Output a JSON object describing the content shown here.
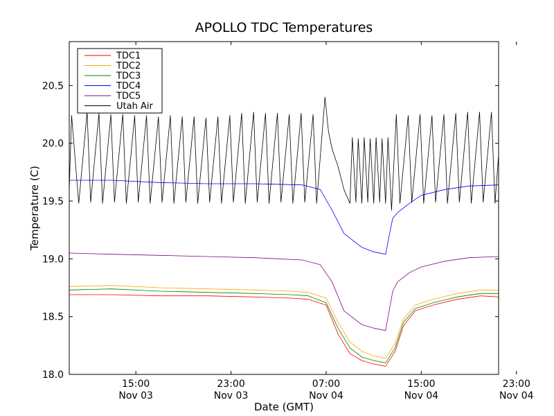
{
  "chart_data": {
    "type": "line",
    "title": "APOLLO TDC Temperatures",
    "xlabel": "Date (GMT)",
    "ylabel": "Temperature (C)",
    "xlim": [
      9.4,
      45.5
    ],
    "ylim": [
      18.0,
      20.88
    ],
    "yticks": [
      "18.0",
      "18.5",
      "19.0",
      "19.5",
      "20.0",
      "20.5"
    ],
    "ytick_values": [
      18.0,
      18.5,
      19.0,
      19.5,
      20.0,
      20.5
    ],
    "xticks": [
      {
        "hours": 15,
        "line1": "15:00",
        "line2": "Nov 03"
      },
      {
        "hours": 23,
        "line1": "23:00",
        "line2": "Nov 03"
      },
      {
        "hours": 31,
        "line1": "07:00",
        "line2": "Nov 04"
      },
      {
        "hours": 39,
        "line1": "15:00",
        "line2": "Nov 04"
      },
      {
        "hours": 47,
        "line1": "23:00",
        "line2": "Nov 04"
      }
    ],
    "legend_position": "top-left",
    "series": [
      {
        "name": "TDC1",
        "color": "#ff0000",
        "x": [
          9.4,
          13,
          17,
          21,
          25,
          28,
          29.5,
          31,
          32,
          33,
          34,
          35,
          36,
          36.8,
          37.5,
          38.5,
          40,
          42,
          44,
          45.5
        ],
        "y": [
          18.69,
          18.69,
          18.68,
          18.68,
          18.67,
          18.66,
          18.65,
          18.6,
          18.35,
          18.18,
          18.12,
          18.09,
          18.07,
          18.2,
          18.42,
          18.55,
          18.6,
          18.65,
          18.68,
          18.67
        ]
      },
      {
        "name": "TDC2",
        "color": "#ffa500",
        "x": [
          9.4,
          13,
          17,
          21,
          25,
          28,
          29.5,
          31,
          32,
          33,
          34,
          35,
          36,
          36.8,
          37.5,
          38.5,
          40,
          42,
          44,
          45.5
        ],
        "y": [
          18.76,
          18.77,
          18.75,
          18.74,
          18.73,
          18.72,
          18.71,
          18.66,
          18.45,
          18.28,
          18.2,
          18.16,
          18.14,
          18.27,
          18.48,
          18.6,
          18.65,
          18.7,
          18.73,
          18.73
        ]
      },
      {
        "name": "TDC3",
        "color": "#008000",
        "x": [
          9.4,
          13,
          17,
          21,
          25,
          28,
          29.5,
          31,
          32,
          33,
          34,
          35,
          36,
          36.8,
          37.5,
          38.5,
          40,
          42,
          44,
          45.5
        ],
        "y": [
          18.73,
          18.74,
          18.72,
          18.71,
          18.7,
          18.69,
          18.68,
          18.62,
          18.4,
          18.23,
          18.15,
          18.12,
          18.1,
          18.23,
          18.45,
          18.57,
          18.62,
          18.67,
          18.7,
          18.7
        ]
      },
      {
        "name": "TDC4",
        "color": "#0000ff",
        "x": [
          9.4,
          13,
          17,
          21,
          25,
          29,
          30.5,
          31.5,
          32.5,
          34,
          35,
          36,
          36.3,
          36.6,
          37,
          38,
          39,
          41,
          43,
          45.5
        ],
        "y": [
          19.68,
          19.68,
          19.66,
          19.65,
          19.65,
          19.64,
          19.6,
          19.42,
          19.22,
          19.1,
          19.06,
          19.04,
          19.2,
          19.35,
          19.4,
          19.48,
          19.55,
          19.6,
          19.63,
          19.64
        ]
      },
      {
        "name": "TDC5",
        "color": "#800080",
        "x": [
          9.4,
          13,
          17,
          21,
          25,
          29,
          30.5,
          31.5,
          32.5,
          34,
          35,
          36,
          36.3,
          36.6,
          37,
          38,
          39,
          41,
          43,
          45.5
        ],
        "y": [
          19.05,
          19.04,
          19.03,
          19.02,
          19.01,
          18.99,
          18.95,
          18.8,
          18.55,
          18.43,
          18.4,
          18.38,
          18.55,
          18.72,
          18.8,
          18.88,
          18.93,
          18.98,
          19.01,
          19.02
        ]
      },
      {
        "name": "Utah Air",
        "color": "#000000",
        "x": [
          9.4,
          9.6,
          10.2,
          10.9,
          11.2,
          11.9,
          12.2,
          12.9,
          13.2,
          13.9,
          14.2,
          14.9,
          15.2,
          15.9,
          16.2,
          16.9,
          17.2,
          17.9,
          18.2,
          18.9,
          19.2,
          19.9,
          20.2,
          20.9,
          21.2,
          21.9,
          22.2,
          22.9,
          23.2,
          23.9,
          24.2,
          24.9,
          25.2,
          25.9,
          26.2,
          26.9,
          27.2,
          27.9,
          28.2,
          28.9,
          29.2,
          29.9,
          30.2,
          30.9,
          31.2,
          31.5,
          32.0,
          32.5,
          33.0,
          33.2,
          33.5,
          33.7,
          34.0,
          34.2,
          34.5,
          34.7,
          35.0,
          35.2,
          35.5,
          35.7,
          36.0,
          36.2,
          36.5,
          36.9,
          37.2,
          37.9,
          38.2,
          38.9,
          39.2,
          39.9,
          40.2,
          40.9,
          41.2,
          41.9,
          42.2,
          42.9,
          43.2,
          43.9,
          44.2,
          44.9,
          45.2,
          45.5
        ],
        "y": [
          19.6,
          20.24,
          19.48,
          20.27,
          19.49,
          20.26,
          19.48,
          20.25,
          19.49,
          20.25,
          19.48,
          20.24,
          19.49,
          20.24,
          19.48,
          20.23,
          19.49,
          20.24,
          19.48,
          20.23,
          19.49,
          20.23,
          19.48,
          20.22,
          19.49,
          20.23,
          19.48,
          20.24,
          19.49,
          20.26,
          19.48,
          20.27,
          19.49,
          20.26,
          19.48,
          20.26,
          19.49,
          20.25,
          19.48,
          20.26,
          19.49,
          20.25,
          19.48,
          20.4,
          20.1,
          19.95,
          19.8,
          19.6,
          19.48,
          20.05,
          19.49,
          20.04,
          19.48,
          20.05,
          19.49,
          20.04,
          19.48,
          20.05,
          19.49,
          20.04,
          19.48,
          20.05,
          19.42,
          20.25,
          19.48,
          20.24,
          19.49,
          20.25,
          19.48,
          20.24,
          19.49,
          20.25,
          19.48,
          20.26,
          19.49,
          20.27,
          19.48,
          20.27,
          19.49,
          20.27,
          19.48,
          19.9
        ]
      }
    ]
  }
}
